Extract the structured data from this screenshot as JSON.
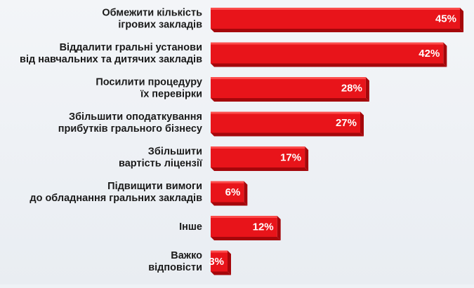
{
  "chart_data": {
    "type": "bar",
    "orientation": "horizontal",
    "categories": [
      [
        "Обмежити кількість",
        "ігрових закладів"
      ],
      [
        "Віддалити гральні установи",
        "від навчальних та дитячих закладів"
      ],
      [
        "Посилити процедуру",
        "їх перевірки"
      ],
      [
        "Збільшити оподаткування",
        "прибутків грального бізнесу"
      ],
      [
        "Збільшити",
        "вартість ліцензії"
      ],
      [
        "Підвищити вимоги",
        "до обладнання гральних закладів"
      ],
      [
        "Інше"
      ],
      [
        "Важко",
        "відповісти"
      ]
    ],
    "values": [
      45,
      42,
      28,
      27,
      17,
      6,
      12,
      3
    ],
    "value_labels": [
      "45%",
      "42%",
      "28%",
      "27%",
      "17%",
      "6%",
      "12%",
      "3%"
    ],
    "unit": "%",
    "xlim": [
      0,
      45
    ],
    "grid": false,
    "legend": "none"
  },
  "colors": {
    "bar_front": "#e8141a",
    "bar_top": "#ff5a57",
    "bar_side": "#a5070b",
    "value_text": "#ffffff",
    "category_text": "#1a1a1a"
  }
}
